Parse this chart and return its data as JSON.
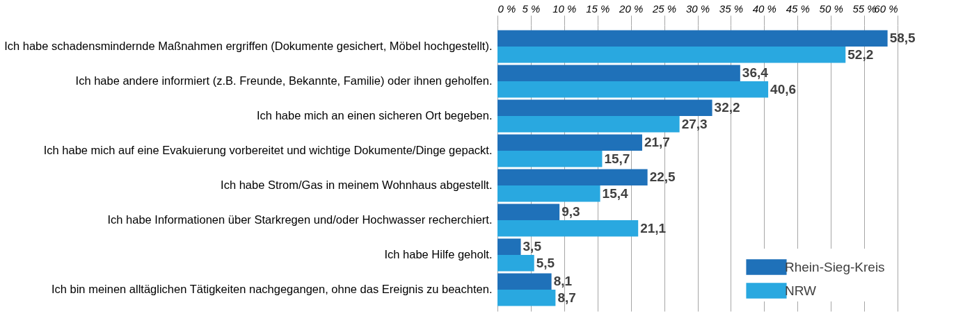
{
  "chart_data": {
    "type": "bar",
    "orientation": "horizontal",
    "categories": [
      "Ich habe schadensmindernde Maßnahmen ergriffen (Dokumente gesichert, Möbel hochgestellt).",
      "Ich habe andere informiert (z.B. Freunde, Bekannte, Familie) oder ihnen geholfen.",
      "Ich habe mich an einen sicheren Ort begeben.",
      "Ich habe mich auf eine Evakuierung vorbereitet und wichtige Dokumente/Dinge gepackt.",
      "Ich habe Strom/Gas in meinem Wohnhaus abgestellt.",
      "Ich habe Informationen über Starkregen und/oder Hochwasser recherchiert.",
      "Ich habe Hilfe geholt.",
      "Ich bin meinen alltäglichen Tätigkeiten nachgegangen, ohne das Ereignis zu beachten."
    ],
    "series": [
      {
        "name": "Rhein-Sieg-Kreis",
        "color": "#1f71b9",
        "values": [
          58.5,
          36.4,
          32.2,
          21.7,
          22.5,
          9.3,
          3.5,
          8.1
        ],
        "value_labels": [
          "58,5",
          "36,4",
          "32,2",
          "21,7",
          "22,5",
          "9,3",
          "3,5",
          "8,1"
        ]
      },
      {
        "name": "NRW",
        "color": "#29a8e0",
        "values": [
          52.2,
          40.6,
          27.3,
          15.7,
          15.4,
          21.1,
          5.5,
          8.7
        ],
        "value_labels": [
          "52,2",
          "40,6",
          "27,3",
          "15,7",
          "15,4",
          "21,1",
          "5,5",
          "8,7"
        ]
      }
    ],
    "xlim": [
      0,
      60
    ],
    "xticks": [
      {
        "value": 0,
        "label": "0 %"
      },
      {
        "value": 5,
        "label": "5 %"
      },
      {
        "value": 10,
        "label": "10 %"
      },
      {
        "value": 15,
        "label": "15 %"
      },
      {
        "value": 20,
        "label": "20 %"
      },
      {
        "value": 25,
        "label": "25 %"
      },
      {
        "value": 30,
        "label": "30 %"
      },
      {
        "value": 35,
        "label": "35 %"
      },
      {
        "value": 40,
        "label": "40 %"
      },
      {
        "value": 45,
        "label": "45 %"
      },
      {
        "value": 50,
        "label": "50 %"
      },
      {
        "value": 55,
        "label": "55 %"
      },
      {
        "value": 60,
        "label": "60 %"
      }
    ],
    "grid": "x",
    "legend": "bottom right"
  }
}
